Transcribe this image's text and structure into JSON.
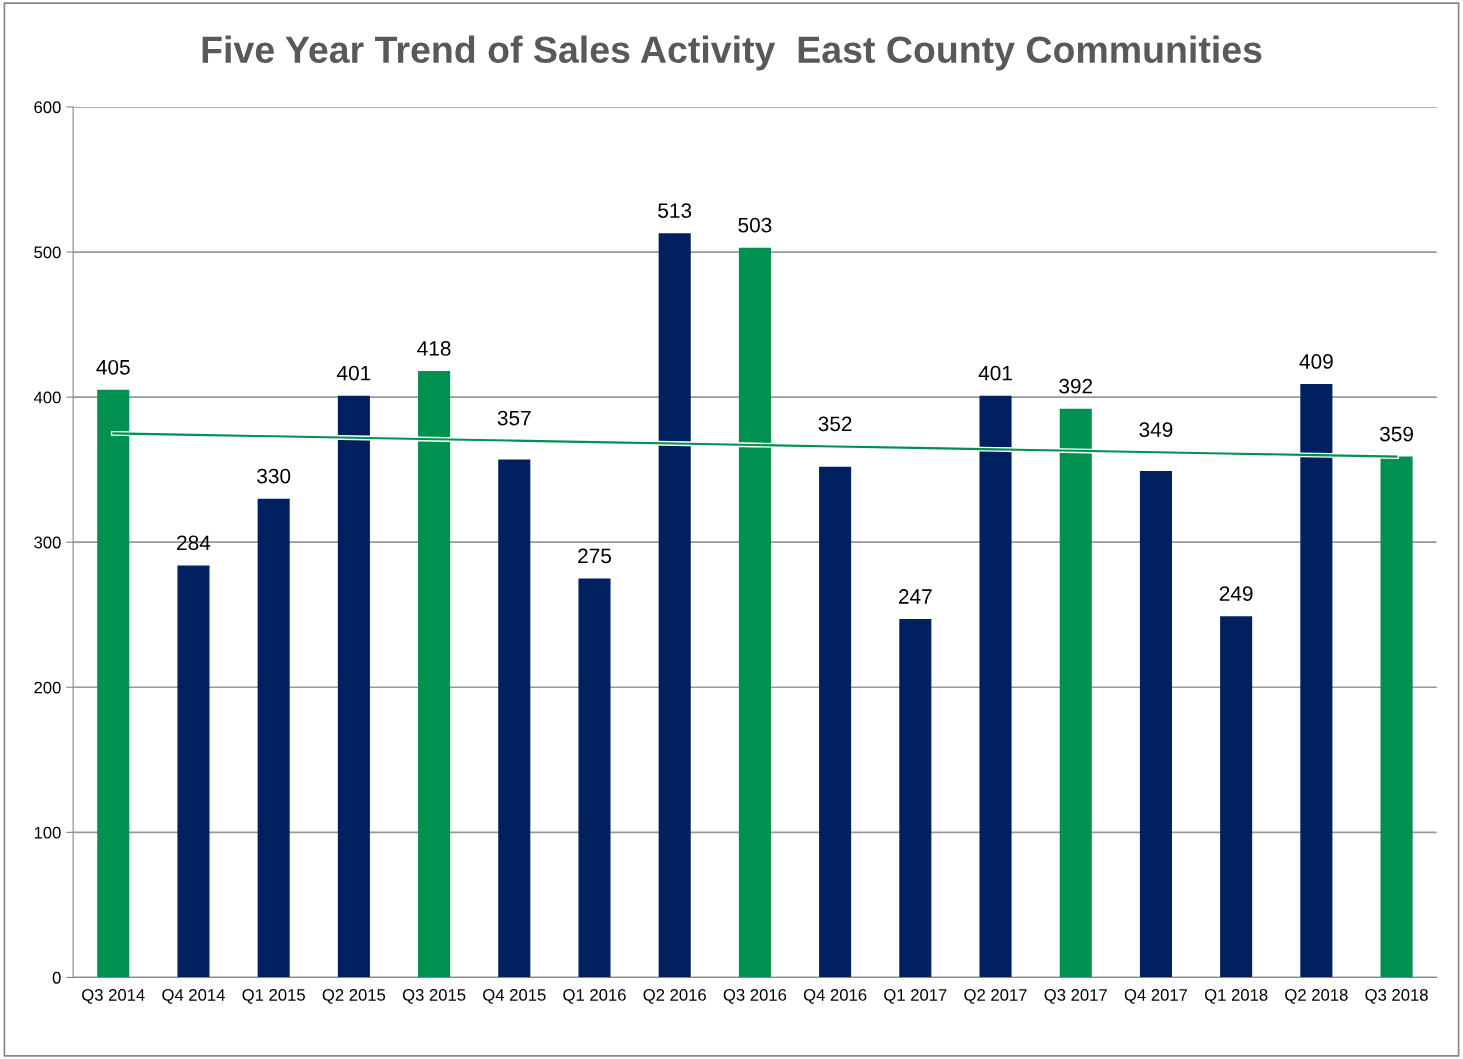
{
  "chart_data": {
    "type": "bar",
    "title": "Five Year Trend of Sales Activity  East County Communities",
    "categories": [
      "Q3 2014",
      "Q4 2014",
      "Q1 2015",
      "Q2 2015",
      "Q3 2015",
      "Q4 2015",
      "Q1 2016",
      "Q2 2016",
      "Q3 2016",
      "Q4 2016",
      "Q1 2017",
      "Q2 2017",
      "Q3 2017",
      "Q4 2017",
      "Q1 2018",
      "Q2 2018",
      "Q3 2018"
    ],
    "series": [
      {
        "values": [
          405,
          284,
          330,
          401,
          418,
          357,
          275,
          513,
          503,
          352,
          247,
          401,
          392,
          349,
          249,
          409,
          359
        ],
        "colors": [
          "#00904f",
          "#002060",
          "#002060",
          "#002060",
          "#00904f",
          "#002060",
          "#002060",
          "#002060",
          "#00904f",
          "#002060",
          "#002060",
          "#002060",
          "#00904f",
          "#002060",
          "#002060",
          "#002060",
          "#00904f"
        ],
        "data_labels": true
      },
      {
        "type": "line",
        "color": "#00904f",
        "values": [
          375,
          374,
          373,
          372,
          371,
          370,
          369,
          368,
          367,
          366,
          365,
          364,
          363,
          362,
          361,
          360,
          359
        ]
      }
    ],
    "ylim": [
      0,
      600
    ],
    "yticks": [
      0,
      100,
      200,
      300,
      400,
      500,
      600
    ],
    "grid": "y",
    "legend": false
  }
}
